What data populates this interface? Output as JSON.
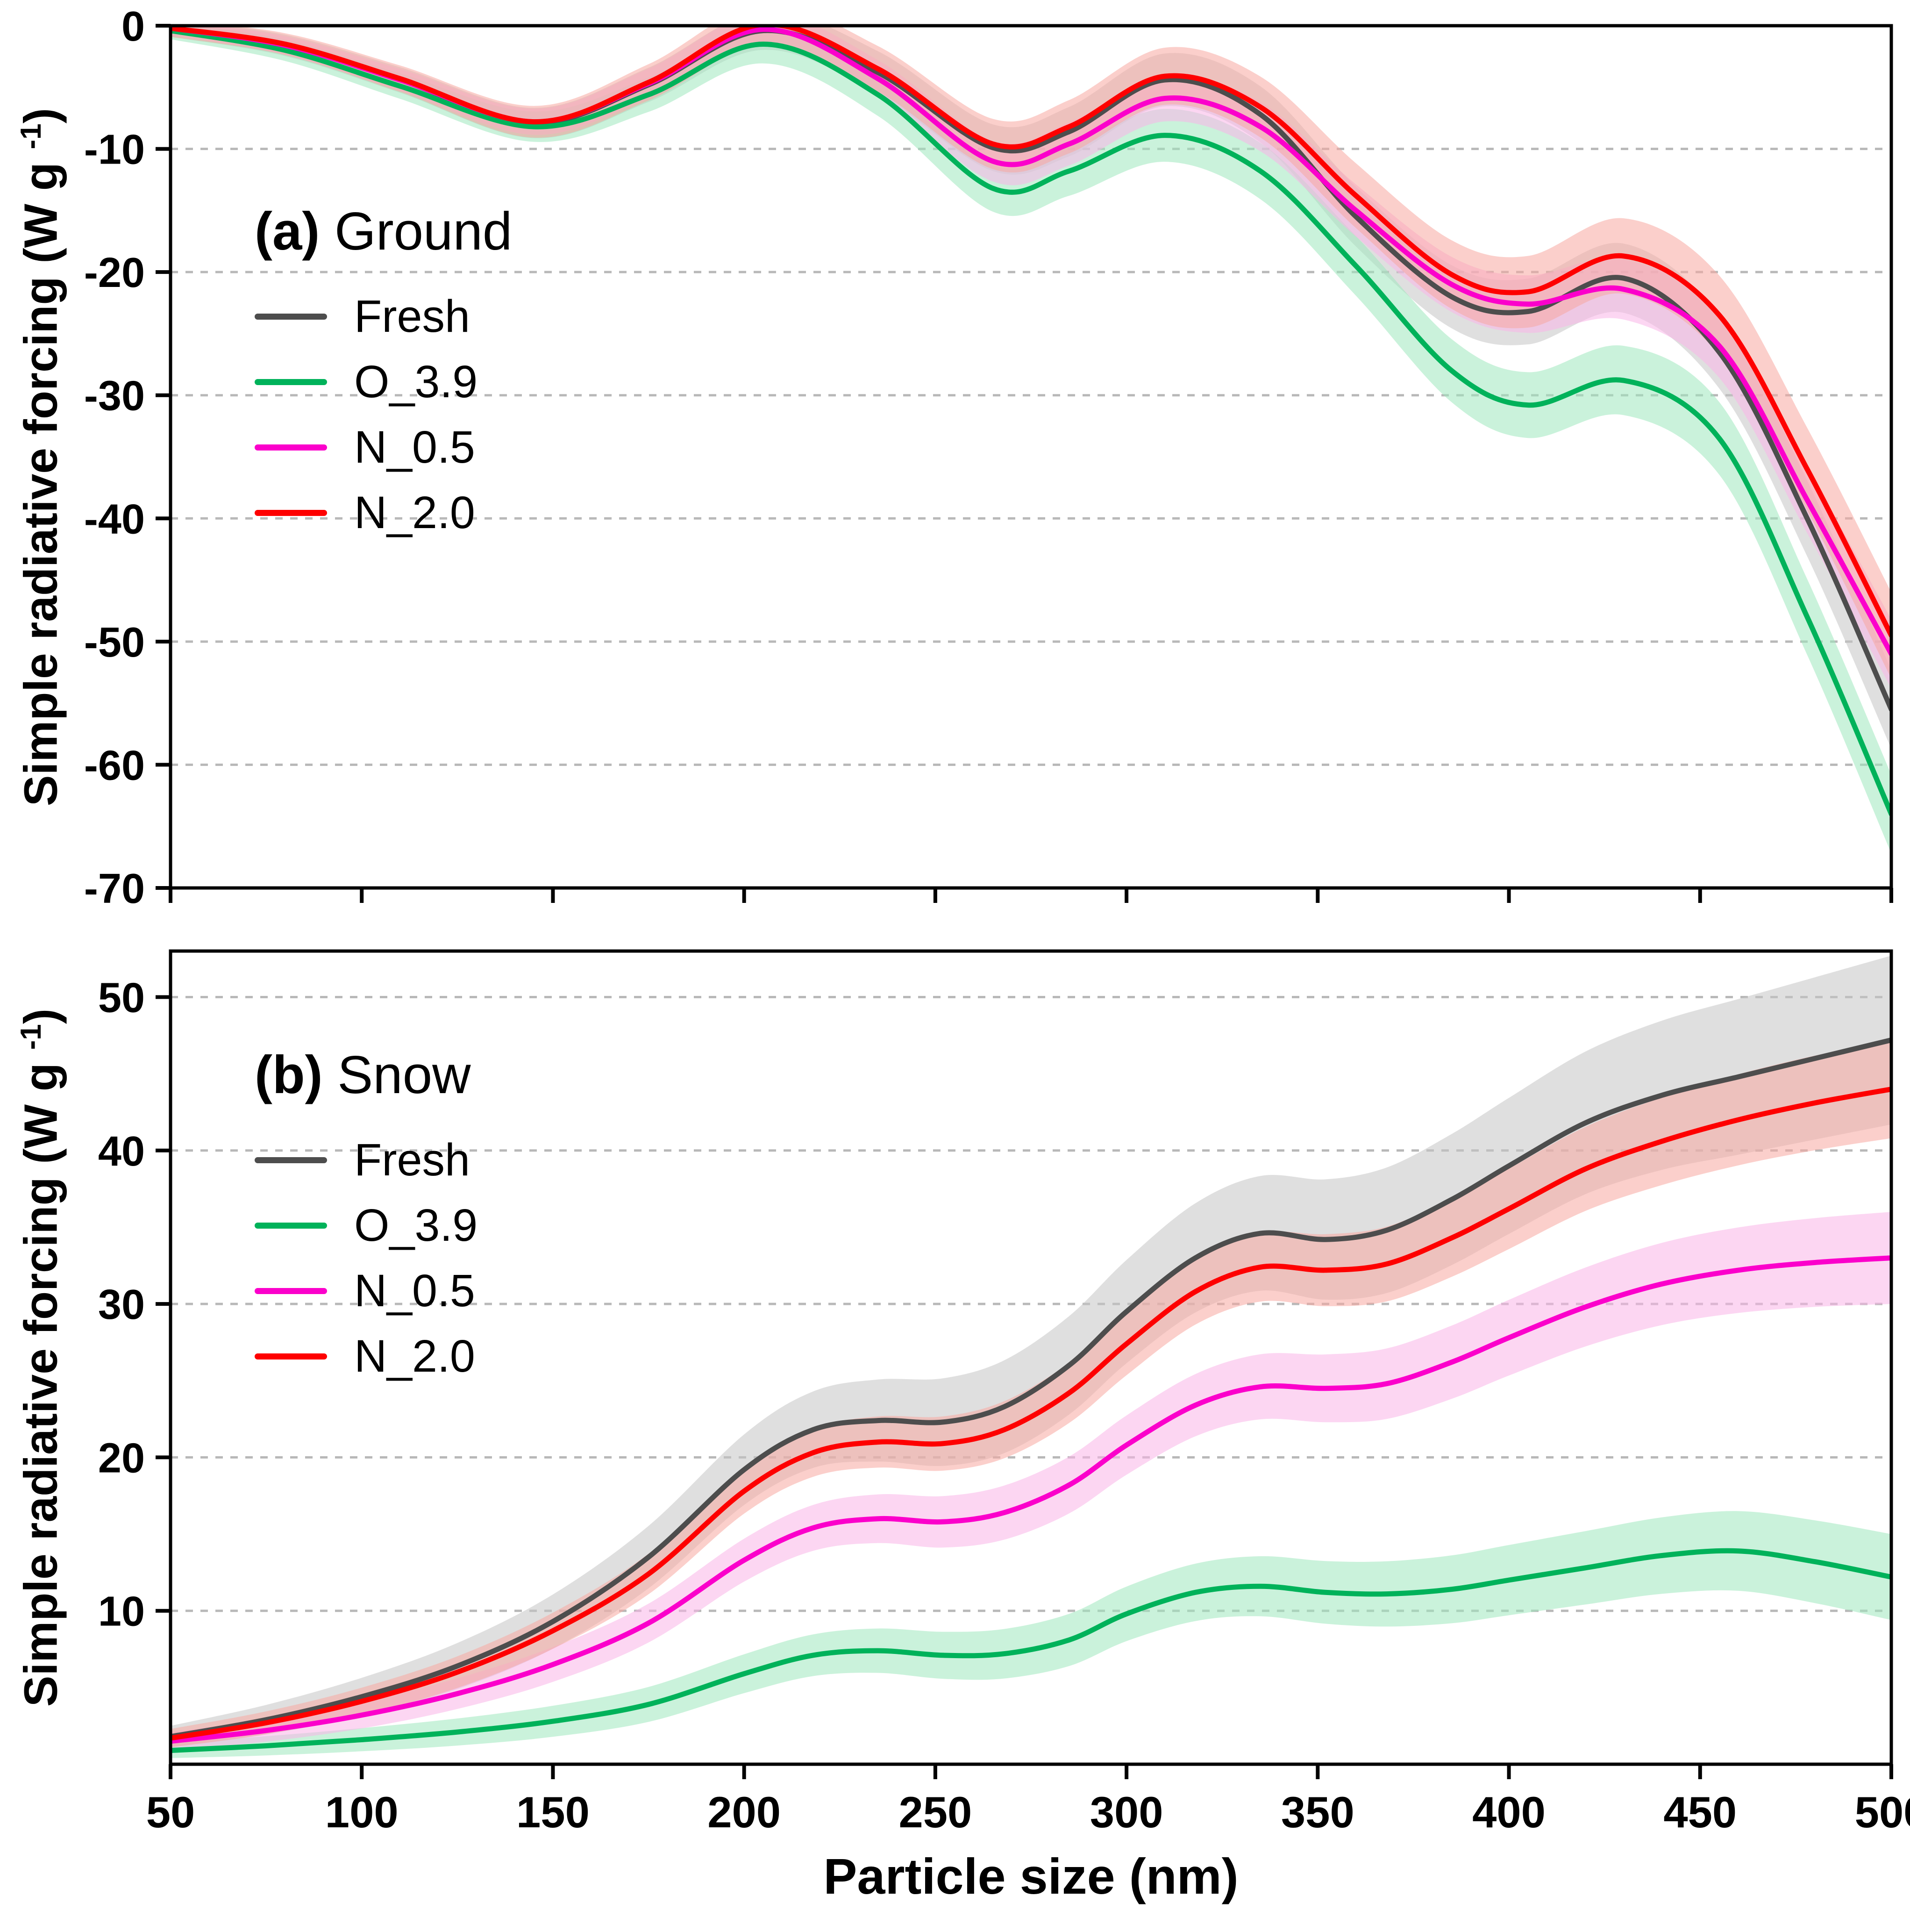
{
  "figure": {
    "xlabel": "Particle size (nm)",
    "ylabel_prefix": "Simple radiative forcing (W g ",
    "ylabel_sup": "-1",
    "ylabel_suffix": ")"
  },
  "chart_data": [
    {
      "type": "line",
      "panel_label_prefix": "(a)",
      "panel_label": "Ground",
      "xlim": [
        50,
        500
      ],
      "ylim": [
        -70,
        0
      ],
      "xticks": {
        "values": [
          50,
          100,
          150,
          200,
          250,
          300,
          350,
          400,
          450,
          500
        ],
        "labels": [
          "50",
          "100",
          "150",
          "200",
          "250",
          "300",
          "350",
          "400",
          "450",
          "500"
        ]
      },
      "show_x_tick_labels": false,
      "yticks": {
        "values": [
          0,
          -10,
          -20,
          -30,
          -40,
          -50,
          -60,
          -70
        ],
        "labels": [
          "0",
          "-10",
          "-20",
          "-30",
          "-40",
          "-50",
          "-60",
          "-70"
        ]
      },
      "grid": "horizontal-dashed",
      "legend_position": "upper-left-inside",
      "grid_color": "#b8b8b8",
      "series": [
        {
          "name": "Fresh",
          "color": "#4d4d4d",
          "band_color": "#c4c4c4",
          "band": [
            0.7,
            3.2
          ],
          "x": [
            50,
            80,
            110,
            145,
            175,
            205,
            235,
            265,
            285,
            310,
            335,
            360,
            385,
            405,
            430,
            455,
            478,
            500
          ],
          "y": [
            -0.2,
            -1.6,
            -4.4,
            -7.9,
            -4.8,
            -0.4,
            -3.8,
            -9.9,
            -8.6,
            -4.4,
            -7.2,
            -15.5,
            -22.0,
            -23.2,
            -20.5,
            -26.5,
            -40,
            -55.5
          ]
        },
        {
          "name": "O_3.9",
          "color": "#00b25a",
          "band_color": "#9fe8bd",
          "band": [
            0.7,
            3.2
          ],
          "x": [
            50,
            80,
            110,
            145,
            175,
            205,
            235,
            265,
            285,
            310,
            335,
            360,
            385,
            405,
            430,
            455,
            478,
            500
          ],
          "y": [
            -0.4,
            -2.0,
            -4.9,
            -8.2,
            -5.6,
            -1.5,
            -5.6,
            -13.2,
            -11.8,
            -8.9,
            -11.8,
            -19.5,
            -28.0,
            -30.8,
            -28.8,
            -33.5,
            -48,
            -64
          ]
        },
        {
          "name": "N_0.5",
          "color": "#fb00cb",
          "band_color": "#f9b5e8",
          "band": [
            0.6,
            2.8
          ],
          "x": [
            50,
            80,
            110,
            145,
            175,
            205,
            235,
            265,
            285,
            310,
            335,
            360,
            385,
            405,
            430,
            455,
            478,
            500
          ],
          "y": [
            -0.2,
            -1.6,
            -4.4,
            -7.8,
            -4.7,
            -0.3,
            -4.3,
            -11.0,
            -9.6,
            -5.9,
            -8.2,
            -15.0,
            -21.0,
            -22.6,
            -21.4,
            -26.0,
            -38.5,
            -51
          ]
        },
        {
          "name": "N_2.0",
          "color": "#fe0000",
          "band_color": "#f7a8a0",
          "band": [
            0.7,
            3.5
          ],
          "x": [
            50,
            80,
            110,
            145,
            175,
            205,
            235,
            265,
            285,
            310,
            335,
            360,
            385,
            405,
            430,
            455,
            478,
            500
          ],
          "y": [
            -0.2,
            -1.5,
            -4.3,
            -7.8,
            -4.6,
            0.1,
            -3.5,
            -9.6,
            -8.2,
            -4.1,
            -6.6,
            -13.8,
            -20.2,
            -21.6,
            -18.7,
            -23.5,
            -36,
            -49.5
          ]
        }
      ]
    },
    {
      "type": "line",
      "panel_label_prefix": "(b)",
      "panel_label": "Snow",
      "xlim": [
        50,
        500
      ],
      "ylim": [
        0,
        53
      ],
      "xticks": {
        "values": [
          50,
          100,
          150,
          200,
          250,
          300,
          350,
          400,
          450,
          500
        ],
        "labels": [
          "50",
          "100",
          "150",
          "200",
          "250",
          "300",
          "350",
          "400",
          "450",
          "500"
        ]
      },
      "show_x_tick_labels": true,
      "yticks": {
        "values": [
          10,
          20,
          30,
          40,
          50
        ],
        "labels": [
          "10",
          "20",
          "30",
          "40",
          "50"
        ]
      },
      "grid": "horizontal-dashed",
      "legend_position": "upper-left-inside",
      "grid_color": "#b8b8b8",
      "series": [
        {
          "name": "Fresh",
          "color": "#4d4d4d",
          "band_color": "#c4c4c4",
          "band": [
            0.7,
            5.5
          ],
          "x": [
            50,
            75,
            100,
            125,
            150,
            175,
            200,
            218,
            235,
            252,
            268,
            285,
            300,
            318,
            335,
            352,
            368,
            385,
            400,
            420,
            440,
            460,
            480,
            500
          ],
          "y": [
            1.8,
            2.9,
            4.4,
            6.4,
            9.3,
            13.5,
            19.2,
            21.8,
            22.4,
            22.3,
            23.3,
            26.0,
            29.5,
            33.0,
            34.6,
            34.2,
            34.8,
            36.8,
            39.0,
            41.8,
            43.6,
            44.8,
            46.0,
            47.2
          ]
        },
        {
          "name": "O_3.9",
          "color": "#00b25a",
          "band_color": "#9fe8bd",
          "band": [
            0.5,
            2.8
          ],
          "x": [
            50,
            75,
            100,
            125,
            150,
            175,
            200,
            218,
            235,
            252,
            268,
            285,
            300,
            318,
            335,
            352,
            368,
            385,
            400,
            420,
            440,
            460,
            480,
            500
          ],
          "y": [
            0.9,
            1.2,
            1.6,
            2.1,
            2.8,
            3.9,
            5.9,
            7.1,
            7.4,
            7.1,
            7.2,
            8.1,
            9.8,
            11.2,
            11.6,
            11.2,
            11.1,
            11.4,
            12.0,
            12.8,
            13.6,
            13.9,
            13.2,
            12.2
          ]
        },
        {
          "name": "N_0.5",
          "color": "#fb00cb",
          "band_color": "#f9b5e8",
          "band": [
            0.6,
            3.0
          ],
          "x": [
            50,
            75,
            100,
            125,
            150,
            175,
            200,
            218,
            235,
            252,
            268,
            285,
            300,
            318,
            335,
            352,
            368,
            385,
            400,
            420,
            440,
            460,
            480,
            500
          ],
          "y": [
            1.5,
            2.2,
            3.2,
            4.6,
            6.5,
            9.2,
            13.3,
            15.4,
            16.0,
            15.8,
            16.4,
            18.2,
            20.8,
            23.4,
            24.6,
            24.5,
            24.8,
            26.2,
            27.8,
            29.8,
            31.3,
            32.2,
            32.7,
            33.0
          ]
        },
        {
          "name": "N_2.0",
          "color": "#fe0000",
          "band_color": "#f7a8a0",
          "band": [
            0.6,
            3.2
          ],
          "x": [
            50,
            75,
            100,
            125,
            150,
            175,
            200,
            218,
            235,
            252,
            268,
            285,
            300,
            318,
            335,
            352,
            368,
            385,
            400,
            420,
            440,
            460,
            480,
            500
          ],
          "y": [
            1.7,
            2.7,
            4.1,
            6.0,
            8.7,
            12.4,
            17.8,
            20.3,
            21.0,
            20.9,
            21.8,
            24.2,
            27.4,
            30.8,
            32.4,
            32.2,
            32.6,
            34.3,
            36.2,
            38.8,
            40.6,
            42.0,
            43.1,
            44.0
          ]
        }
      ]
    }
  ]
}
